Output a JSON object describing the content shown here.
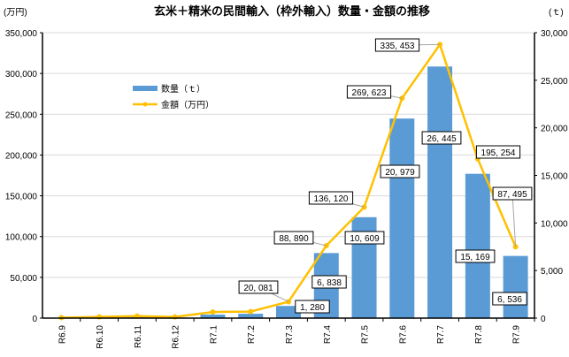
{
  "chart_data": {
    "type": "bar+line",
    "title": "玄米＋精米の民間輸入（枠外輸入）数量・金額の推移",
    "ylabel_left": "(万円)",
    "ylabel_right": "(ｔ)",
    "categories": [
      "R6.9",
      "R6.10",
      "R6.11",
      "R6.12",
      "R7.1",
      "R7.2",
      "R7.3",
      "R7.4",
      "R7.5",
      "R7.6",
      "R7.7",
      "R7.8",
      "R7.9"
    ],
    "left_axis": {
      "range": [
        0,
        350000
      ],
      "ticks": [
        "0",
        "50,000",
        "100,000",
        "150,000",
        "200,000",
        "250,000",
        "300,000",
        "350,000"
      ]
    },
    "right_axis": {
      "range": [
        0,
        30000
      ],
      "ticks": [
        "0",
        "5,000",
        "10,000",
        "15,000",
        "20,000",
        "25,000",
        "30,000"
      ]
    },
    "grid": true,
    "legend_position": "upper-left-inside",
    "series": [
      {
        "name": "数量（ｔ）",
        "type": "bar",
        "axis": "right",
        "color": "#5b9bd5",
        "values": [
          20,
          60,
          90,
          60,
          370,
          460,
          1280,
          6838,
          10609,
          20979,
          26445,
          15169,
          6536
        ],
        "labels": [
          "",
          "",
          "",
          "",
          "",
          "",
          "1, 280",
          "6, 838",
          "10, 609",
          "20, 979",
          "26, 445",
          "15, 169",
          "6, 536"
        ]
      },
      {
        "name": "金額（万円）",
        "type": "line",
        "axis": "left",
        "color": "#ffc000",
        "values": [
          500,
          1500,
          2500,
          1500,
          7500,
          8000,
          20081,
          88890,
          136120,
          269623,
          335453,
          195254,
          87495
        ],
        "labels": [
          "",
          "",
          "",
          "",
          "",
          "",
          "20, 081",
          "88, 890",
          "136, 120",
          "269, 623",
          "335, 453",
          "195, 254",
          "87, 495"
        ]
      }
    ]
  }
}
